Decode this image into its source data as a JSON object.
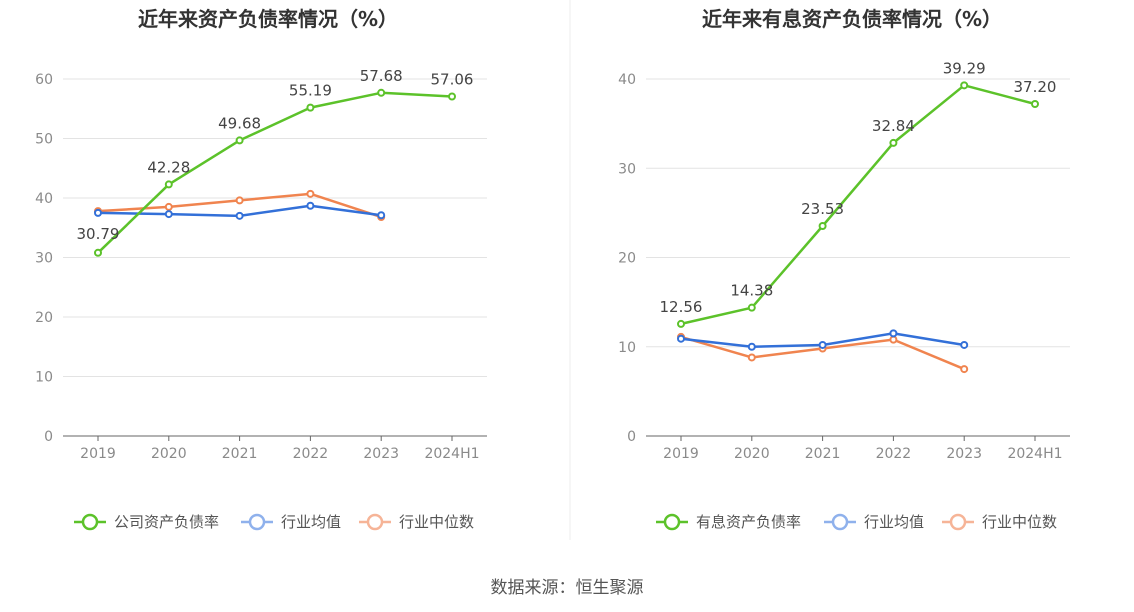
{
  "source": "数据来源：恒生聚源",
  "chart_data": [
    {
      "type": "line",
      "title": "近年来资产负债率情况（%）",
      "categories": [
        "2019",
        "2020",
        "2021",
        "2022",
        "2023",
        "2024H1"
      ],
      "ylim": [
        0,
        60
      ],
      "yticks": [
        0,
        10,
        20,
        30,
        40,
        50,
        60
      ],
      "grid": true,
      "legend_position": "bottom",
      "series": [
        {
          "name": "公司资产负债率",
          "color": "#5cc22a",
          "values": [
            30.79,
            42.28,
            49.68,
            55.19,
            57.68,
            57.06
          ],
          "labels": [
            "30.79",
            "42.28",
            "49.68",
            "55.19",
            "57.68",
            "57.06"
          ]
        },
        {
          "name": "行业均值",
          "color": "#3370d8",
          "values": [
            37.5,
            37.3,
            37.0,
            38.7,
            37.1,
            null
          ]
        },
        {
          "name": "行业中位数",
          "color": "#f0844f",
          "values": [
            37.8,
            38.5,
            39.6,
            40.7,
            36.8,
            null
          ]
        }
      ]
    },
    {
      "type": "line",
      "title": "近年来有息资产负债率情况（%）",
      "categories": [
        "2019",
        "2020",
        "2021",
        "2022",
        "2023",
        "2024H1"
      ],
      "ylim": [
        0,
        40
      ],
      "yticks": [
        0,
        10,
        20,
        30,
        40
      ],
      "grid": true,
      "legend_position": "bottom",
      "series": [
        {
          "name": "有息资产负债率",
          "color": "#5cc22a",
          "values": [
            12.56,
            14.38,
            23.53,
            32.84,
            39.29,
            37.2
          ],
          "labels": [
            "12.56",
            "14.38",
            "23.53",
            "32.84",
            "39.29",
            "37.20"
          ]
        },
        {
          "name": "行业均值",
          "color": "#3370d8",
          "values": [
            10.9,
            10.0,
            10.2,
            11.5,
            10.2,
            null
          ]
        },
        {
          "name": "行业中位数",
          "color": "#f0844f",
          "values": [
            11.1,
            8.8,
            9.8,
            10.8,
            7.5,
            null
          ]
        }
      ]
    }
  ]
}
